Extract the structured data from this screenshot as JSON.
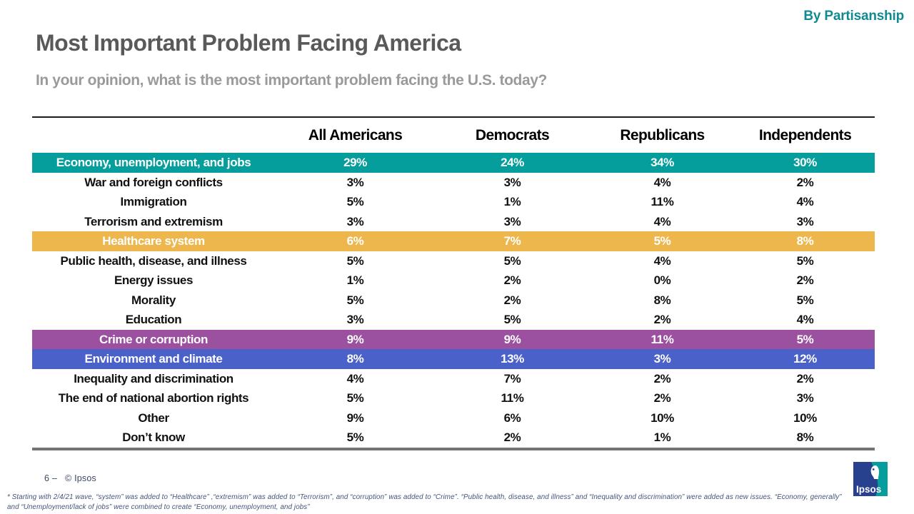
{
  "badge": "By Partisanship",
  "title": "Most Important Problem Facing America",
  "subtitle": "In your opinion, what is the most important problem facing the U.S. today?",
  "chart_data": {
    "type": "table",
    "title": "Most Important Problem Facing America",
    "categories": [
      "All Americans",
      "Democrats",
      "Republicans",
      "Independents"
    ],
    "rows": [
      {
        "label": "Economy, unemployment, and jobs",
        "values": [
          "29%",
          "24%",
          "34%",
          "30%"
        ],
        "highlight": "teal"
      },
      {
        "label": "War and foreign conflicts",
        "values": [
          "3%",
          "3%",
          "4%",
          "2%"
        ],
        "highlight": null
      },
      {
        "label": "Immigration",
        "values": [
          "5%",
          "1%",
          "11%",
          "4%"
        ],
        "highlight": null
      },
      {
        "label": "Terrorism and extremism",
        "values": [
          "3%",
          "3%",
          "4%",
          "3%"
        ],
        "highlight": null
      },
      {
        "label": "Healthcare system",
        "values": [
          "6%",
          "7%",
          "5%",
          "8%"
        ],
        "highlight": "gold"
      },
      {
        "label": "Public health, disease, and illness",
        "values": [
          "5%",
          "5%",
          "4%",
          "5%"
        ],
        "highlight": null
      },
      {
        "label": "Energy issues",
        "values": [
          "1%",
          "2%",
          "0%",
          "2%"
        ],
        "highlight": null
      },
      {
        "label": "Morality",
        "values": [
          "5%",
          "2%",
          "8%",
          "5%"
        ],
        "highlight": null
      },
      {
        "label": "Education",
        "values": [
          "3%",
          "5%",
          "2%",
          "4%"
        ],
        "highlight": null
      },
      {
        "label": "Crime or corruption",
        "values": [
          "9%",
          "9%",
          "11%",
          "5%"
        ],
        "highlight": "purple"
      },
      {
        "label": "Environment and climate",
        "values": [
          "8%",
          "13%",
          "3%",
          "12%"
        ],
        "highlight": "blue"
      },
      {
        "label": "Inequality and discrimination",
        "values": [
          "4%",
          "7%",
          "2%",
          "2%"
        ],
        "highlight": null
      },
      {
        "label": "The end of national abortion rights",
        "values": [
          "5%",
          "11%",
          "2%",
          "3%"
        ],
        "highlight": null
      },
      {
        "label": "Other",
        "values": [
          "9%",
          "6%",
          "10%",
          "10%"
        ],
        "highlight": null
      },
      {
        "label": "Don’t know",
        "values": [
          "5%",
          "2%",
          "1%",
          "8%"
        ],
        "highlight": null
      }
    ],
    "highlight_colors": {
      "teal": "#069E9C",
      "gold": "#EDB74D",
      "purple": "#9B51A0",
      "blue": "#4A61C9"
    }
  },
  "footer": {
    "page_number": "6 –",
    "copyright": "© Ipsos",
    "footnote": "* Starting with 2/4/21 wave, “system” was added to “Healthcare” ,“extremism”  was added to “Terrorism”, and “corruption” was added to “Crime”. “Public health, disease, and illness”  and “Inequality and discrimination” were  added as new issues. “Economy, generally” and “Unemployment/lack of jobs” were combined to create  “Economy, unemployment, and jobs”",
    "logo_text": "Ipsos"
  }
}
